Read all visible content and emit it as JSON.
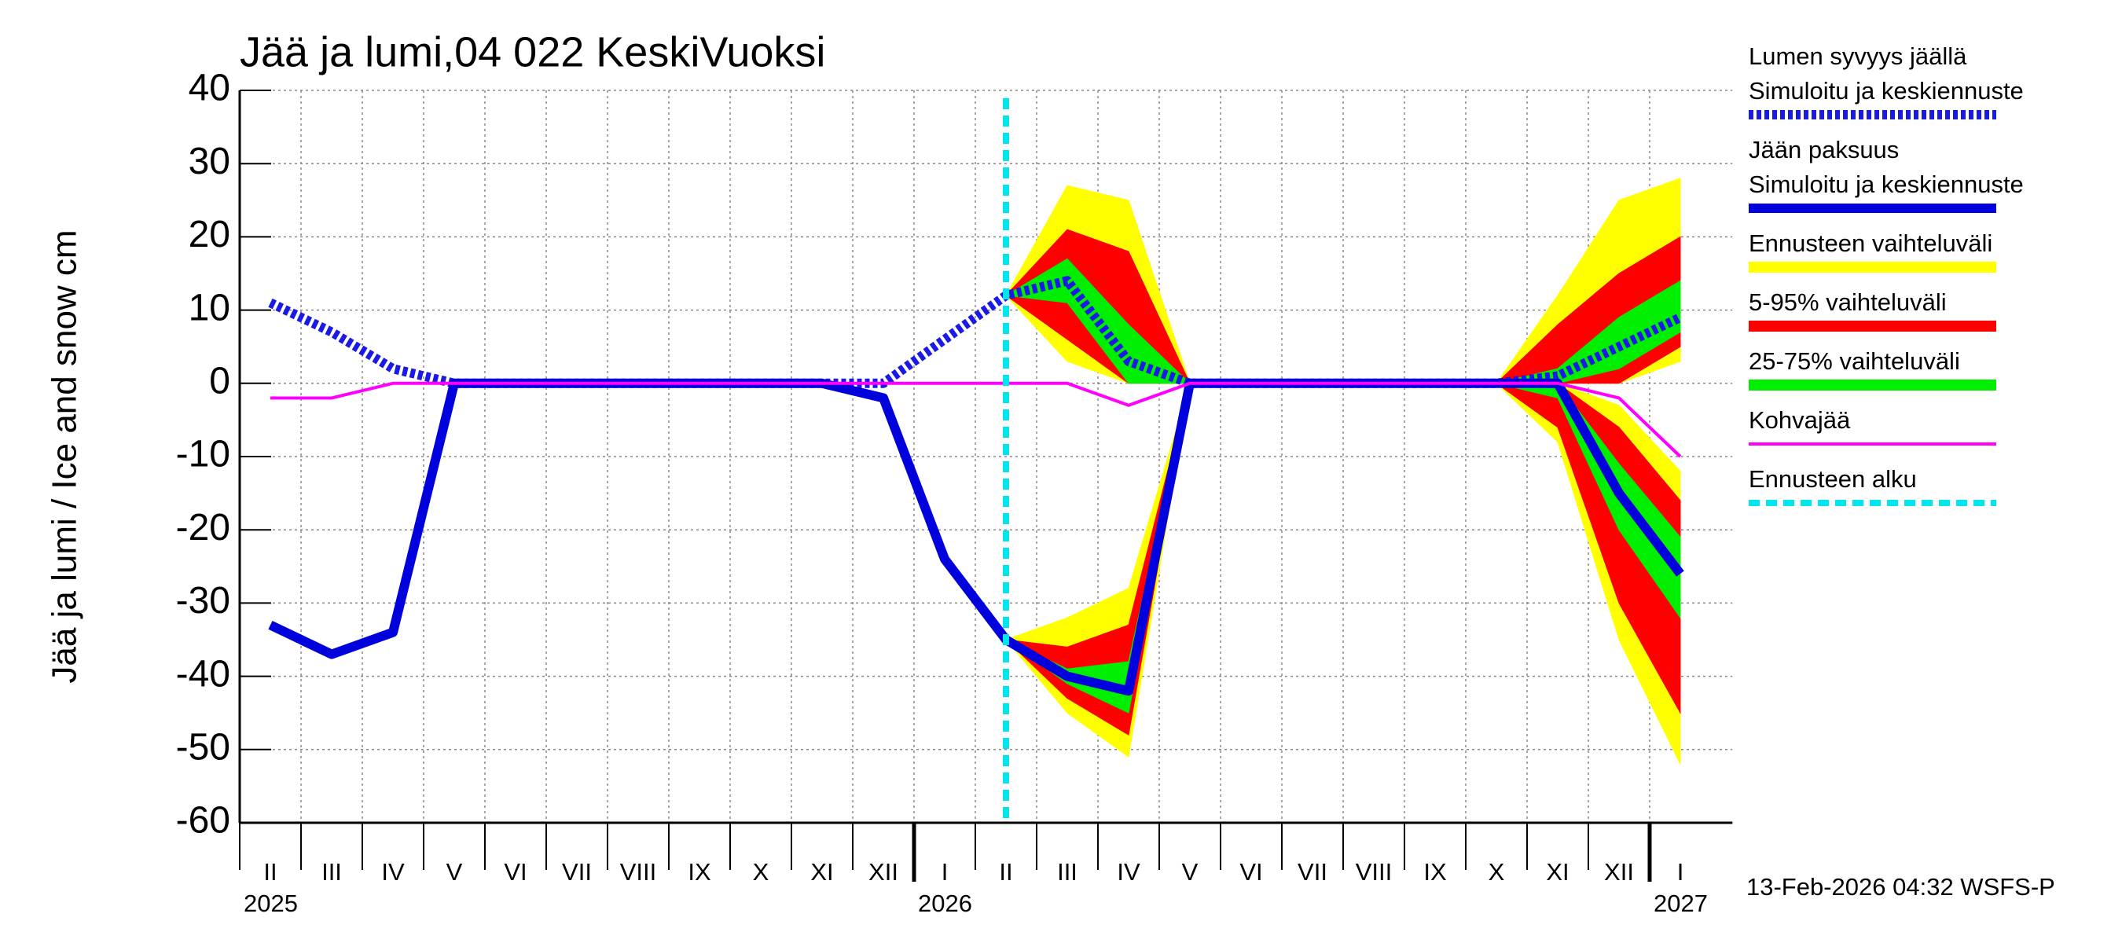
{
  "chart_data": {
    "type": "line",
    "title": "Jää ja lumi,04 022 KeskiVuoksi",
    "y_label": "Jää ja lumi / Ice and snow    cm",
    "footer": "13-Feb-2026 04:32 WSFS-P",
    "x": [
      "2025-02",
      "2025-03",
      "2025-04",
      "2025-05",
      "2025-06",
      "2025-07",
      "2025-08",
      "2025-09",
      "2025-10",
      "2025-11",
      "2025-12",
      "2026-01",
      "2026-02",
      "2026-03",
      "2026-04",
      "2026-05",
      "2026-06",
      "2026-07",
      "2026-08",
      "2026-09",
      "2026-10",
      "2026-11",
      "2026-12",
      "2027-01"
    ],
    "xticks": [
      {
        "value": "2025-02",
        "label": "II"
      },
      {
        "value": "2025-03",
        "label": "III"
      },
      {
        "value": "2025-04",
        "label": "IV"
      },
      {
        "value": "2025-05",
        "label": "V"
      },
      {
        "value": "2025-06",
        "label": "VI"
      },
      {
        "value": "2025-07",
        "label": "VII"
      },
      {
        "value": "2025-08",
        "label": "VIII"
      },
      {
        "value": "2025-09",
        "label": "IX"
      },
      {
        "value": "2025-10",
        "label": "X"
      },
      {
        "value": "2025-11",
        "label": "XI"
      },
      {
        "value": "2025-12",
        "label": "XII"
      },
      {
        "value": "2026-01",
        "label": "I"
      },
      {
        "value": "2026-02",
        "label": "II"
      },
      {
        "value": "2026-03",
        "label": "III"
      },
      {
        "value": "2026-04",
        "label": "IV"
      },
      {
        "value": "2026-05",
        "label": "V"
      },
      {
        "value": "2026-06",
        "label": "VI"
      },
      {
        "value": "2026-07",
        "label": "VII"
      },
      {
        "value": "2026-08",
        "label": "VIII"
      },
      {
        "value": "2026-09",
        "label": "IX"
      },
      {
        "value": "2026-10",
        "label": "X"
      },
      {
        "value": "2026-11",
        "label": "XI"
      },
      {
        "value": "2026-12",
        "label": "XII"
      },
      {
        "value": "2027-01",
        "label": "I"
      }
    ],
    "year_ticks": [
      {
        "value": "2025-02",
        "label": "2025"
      },
      {
        "value": "2026-01",
        "label": "2026"
      },
      {
        "value": "2027-01",
        "label": "2027"
      }
    ],
    "ylim": [
      -60,
      40
    ],
    "yticks": [
      -60,
      -50,
      -40,
      -30,
      -20,
      -10,
      0,
      10,
      20,
      30,
      40
    ],
    "grid": true,
    "series": [
      {
        "name": "Lumen syvyys jäällä",
        "subname": "Simuloitu ja keskiennuste",
        "color": "#1a1ae6",
        "style": "dotted",
        "values": [
          11,
          7,
          2,
          0,
          0,
          0,
          0,
          0,
          0,
          0,
          0,
          6,
          12,
          14,
          3,
          0,
          0,
          0,
          0,
          0,
          0,
          1,
          5,
          9
        ]
      },
      {
        "name": "Jään paksuus",
        "subname": "Simuloitu ja keskiennuste",
        "color": "#0000dd",
        "style": "solid",
        "values": [
          -33,
          -37,
          -34,
          0,
          0,
          0,
          0,
          0,
          0,
          0,
          -2,
          -24,
          -35,
          -40,
          -42,
          0,
          0,
          0,
          0,
          0,
          0,
          0,
          -15,
          -26
        ]
      },
      {
        "name": "Kohvajää",
        "color": "#ff00ff",
        "style": "thin",
        "values": [
          -2,
          -2,
          0,
          0,
          0,
          0,
          0,
          0,
          0,
          0,
          0,
          0,
          0,
          0,
          -3,
          0,
          0,
          0,
          0,
          0,
          0,
          0,
          -2,
          -10
        ]
      }
    ],
    "bands": [
      {
        "name": "Ennusteen vaihteluväli",
        "color": "#ffff00",
        "snow_high": [
          null,
          null,
          null,
          null,
          null,
          null,
          null,
          null,
          null,
          null,
          null,
          null,
          12,
          27,
          25,
          0,
          0,
          0,
          0,
          0,
          0,
          12,
          25,
          28
        ],
        "snow_low": [
          null,
          null,
          null,
          null,
          null,
          null,
          null,
          null,
          null,
          null,
          null,
          null,
          12,
          3,
          0,
          0,
          0,
          0,
          0,
          0,
          0,
          0,
          0,
          3
        ],
        "ice_high": [
          null,
          null,
          null,
          null,
          null,
          null,
          null,
          null,
          null,
          null,
          null,
          null,
          -35,
          -32,
          -28,
          0,
          0,
          0,
          0,
          0,
          0,
          0,
          -3,
          -12
        ],
        "ice_low": [
          null,
          null,
          null,
          null,
          null,
          null,
          null,
          null,
          null,
          null,
          null,
          null,
          -35,
          -45,
          -51,
          0,
          0,
          0,
          0,
          0,
          0,
          -8,
          -35,
          -52
        ]
      },
      {
        "name": "5-95% vaihteluväli",
        "color": "#ff0000",
        "snow_high": [
          null,
          null,
          null,
          null,
          null,
          null,
          null,
          null,
          null,
          null,
          null,
          null,
          12,
          21,
          18,
          0,
          0,
          0,
          0,
          0,
          0,
          8,
          15,
          20
        ],
        "snow_low": [
          null,
          null,
          null,
          null,
          null,
          null,
          null,
          null,
          null,
          null,
          null,
          null,
          12,
          6,
          0,
          0,
          0,
          0,
          0,
          0,
          0,
          0,
          0,
          5
        ],
        "ice_high": [
          null,
          null,
          null,
          null,
          null,
          null,
          null,
          null,
          null,
          null,
          null,
          null,
          -35,
          -36,
          -33,
          0,
          0,
          0,
          0,
          0,
          0,
          0,
          -6,
          -16
        ],
        "ice_low": [
          null,
          null,
          null,
          null,
          null,
          null,
          null,
          null,
          null,
          null,
          null,
          null,
          -35,
          -43,
          -48,
          0,
          0,
          0,
          0,
          0,
          0,
          -6,
          -30,
          -45
        ]
      },
      {
        "name": "25-75% vaihteluväli",
        "color": "#00ee00",
        "snow_high": [
          null,
          null,
          null,
          null,
          null,
          null,
          null,
          null,
          null,
          null,
          null,
          null,
          12,
          17,
          8,
          0,
          0,
          0,
          0,
          0,
          0,
          2,
          9,
          14
        ],
        "snow_low": [
          null,
          null,
          null,
          null,
          null,
          null,
          null,
          null,
          null,
          null,
          null,
          null,
          12,
          11,
          0,
          0,
          0,
          0,
          0,
          0,
          0,
          0,
          2,
          7
        ],
        "ice_high": [
          null,
          null,
          null,
          null,
          null,
          null,
          null,
          null,
          null,
          null,
          null,
          null,
          -35,
          -39,
          -38,
          0,
          0,
          0,
          0,
          0,
          0,
          0,
          -11,
          -21
        ],
        "ice_low": [
          null,
          null,
          null,
          null,
          null,
          null,
          null,
          null,
          null,
          null,
          null,
          null,
          -35,
          -41,
          -45,
          0,
          0,
          0,
          0,
          0,
          0,
          -2,
          -20,
          -32
        ]
      }
    ],
    "forecast": {
      "name": "Ennusteen alku",
      "color": "#00e5ee",
      "x": "2026-02"
    }
  }
}
